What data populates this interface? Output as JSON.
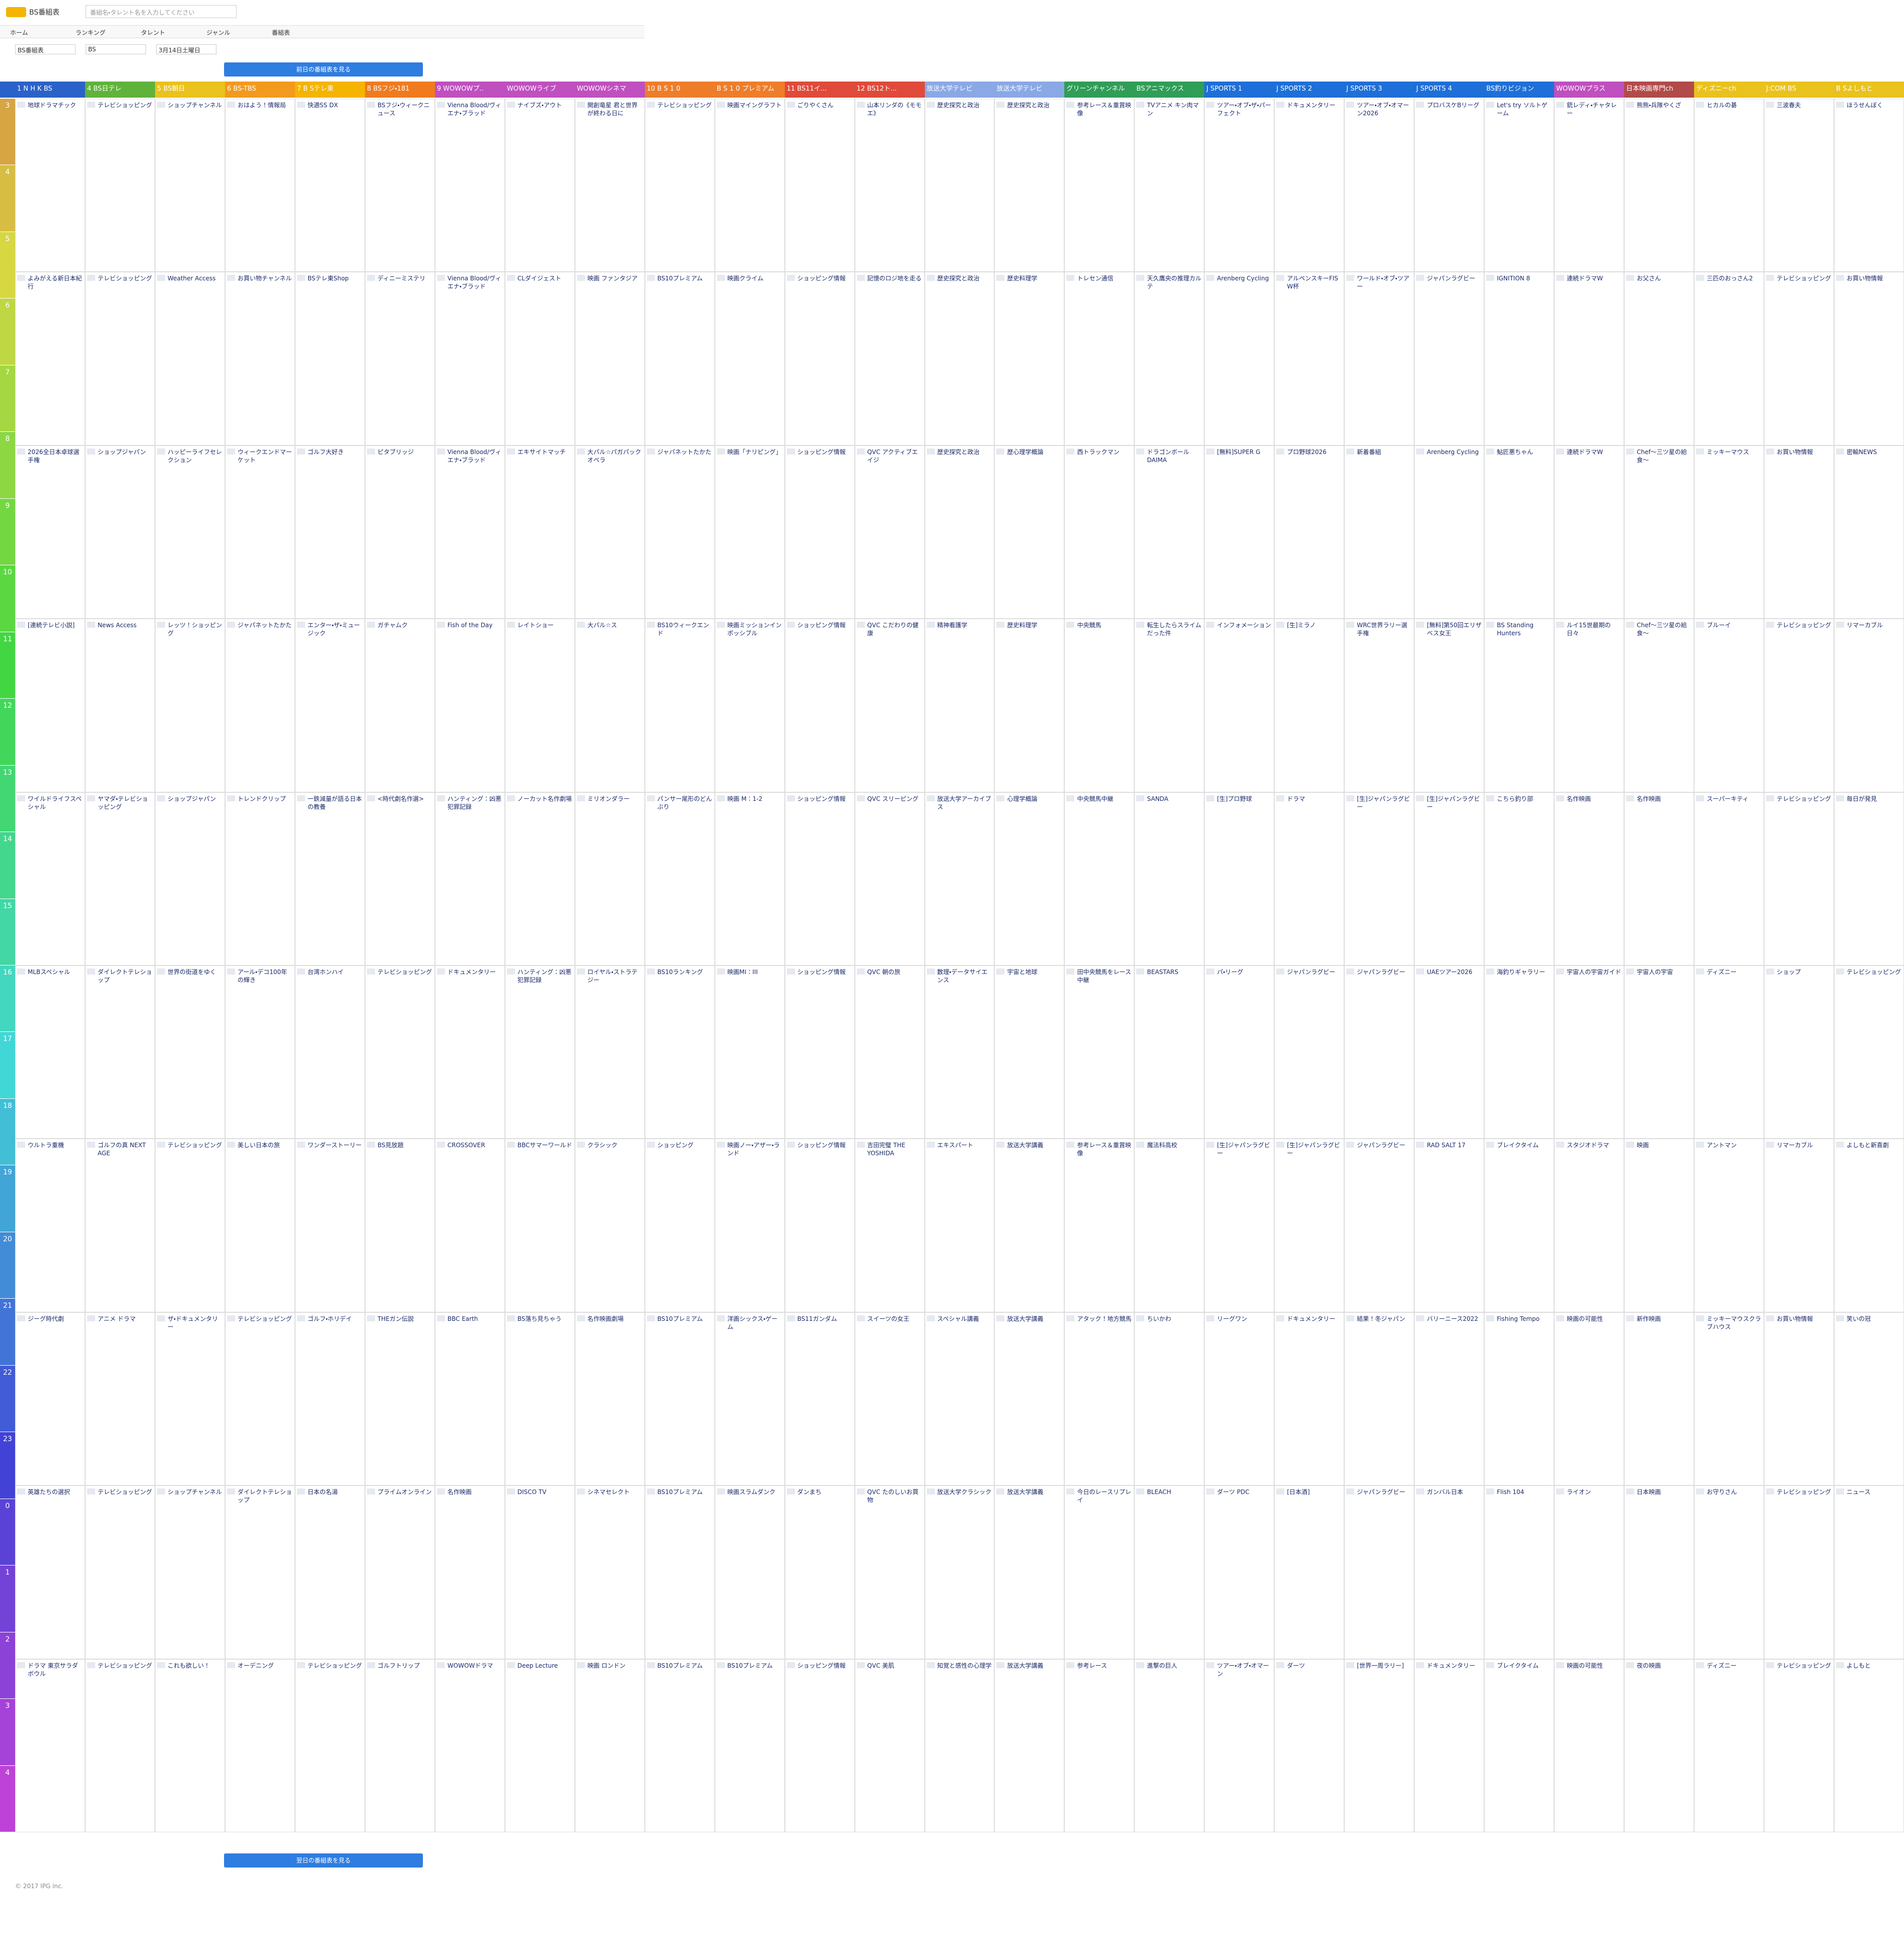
{
  "header": {
    "logo": "BS番組表",
    "search_placeholder": "番組名・タレント名を入力してください"
  },
  "nav": [
    "ホーム",
    "ランキング",
    "タレント",
    "ジャンル",
    "番組表"
  ],
  "selectors": [
    "BS番組表",
    "BS",
    "3月14日土曜日"
  ],
  "prev_button": "前日の番組表を見る",
  "next_button": "翌日の番組表を見る",
  "footer": "© 2017 IPG inc.",
  "hours": [
    3,
    4,
    5,
    6,
    7,
    8,
    9,
    10,
    11,
    12,
    13,
    14,
    15,
    16,
    17,
    18,
    19,
    20,
    21,
    22,
    23,
    0,
    1,
    2,
    3,
    4
  ],
  "channels": [
    {
      "name": "1 N H K BS",
      "color": "#2b62c9",
      "programs": [
        "地球ドラマチック",
        "よみがえる新日本紀行",
        "2026全日本卓球選手権",
        "[連続テレビ小説]",
        "ワイルドライフスペシャル",
        "MLBスペシャル",
        "ウルトラ重機",
        "ジーグ時代劇",
        "英雄たちの選択",
        "ドラマ 東京サラダボウル"
      ]
    },
    {
      "name": "4 BS日テレ",
      "color": "#5fb33a",
      "programs": [
        "テレビショッピング",
        "テレビショッピング",
        "ショップジャパン",
        "News Access",
        "ヤマダ・テレビショッピング",
        "ダイレクトテレショップ",
        "ゴルフの真 NEXT AGE",
        "アニメ ドラマ",
        "テレビショッピング",
        "テレビショッピング"
      ]
    },
    {
      "name": "5 BS朝日",
      "color": "#e9c21d",
      "programs": [
        "ショップチャンネル",
        "Weather Access",
        "ハッピーライフセレクション",
        "レッツ！ショッピング",
        "ショップジャパン",
        "世界の街道をゆく",
        "テレビショッピング",
        "ザ・ドキュメンタリー",
        "ショップチャンネル",
        "これも欲しい！"
      ]
    },
    {
      "name": "6 BS-TBS",
      "color": "#f29a1d",
      "programs": [
        "おはよう！情報局",
        "お買い物チャンネル",
        "ウィークエンドマーケット",
        "ジャパネットたかた",
        "トレンドクリップ",
        "アール・デコ100年の輝き",
        "美しい日本の旅",
        "テレビショッピング",
        "ダイレクトテレショップ",
        "オーデニング"
      ]
    },
    {
      "name": "7 B Sテレ東",
      "color": "#f4b400",
      "programs": [
        "快適SS DX",
        "BSテレ東Shop",
        "ゴルフ大好き",
        "エンター・ザ・ミュージック",
        "一鉄減量が語る日本の教養",
        "台湾ホンハイ",
        "ワンダーストーリー",
        "ゴルフ・ホリデイ",
        "日本の名湯",
        "テレビショッピング"
      ]
    },
    {
      "name": "8 BSフジ・181",
      "color": "#f07b1e",
      "programs": [
        "BSフジ・ウィークニュース",
        "ディニーミステリ",
        "ピタブリッジ",
        "ガチャムク",
        "<時代劇名作選>",
        "テレビショッピング",
        "BS見放題",
        "THEガン伝説",
        "プライムオンライン",
        "ゴルフトリップ"
      ]
    },
    {
      "name": "9 WOWOWプ..",
      "color": "#c04fc0",
      "programs": [
        "Vienna Blood/ヴィエナ・ブラッド",
        "Vienna Blood/ヴィエナ・ブラッド",
        "Vienna Blood/ヴィエナ・ブラッド",
        "Fish of the Day",
        "ハンティング：凶悪犯罪記録",
        "ドキュメンタリー",
        "CROSSOVER",
        "BBC Earth",
        "名作映画",
        "WOWOWドラマ"
      ]
    },
    {
      "name": "WOWOWライブ",
      "color": "#c04fc0",
      "programs": [
        "ナイブズ・アウト",
        "CLダイジェスト",
        "エキサイトマッチ",
        "レイトショー",
        "ノーカット名作劇場",
        "ハンティング：凶悪犯罪記録",
        "BBCサマーワールド",
        "BS落ち見ちゃう",
        "DISCO TV",
        "Deep Lecture"
      ]
    },
    {
      "name": "WOWOWシネマ",
      "color": "#c04fc0",
      "programs": [
        "開創竜星 君と世界が終わる日に",
        "映画 ファンタジア",
        "大パル☆パガパックオペラ",
        "大パル☆ス",
        "ミリオンダラー",
        "ロイヤル・ストラテジー",
        "クラシック",
        "名作映画劇場",
        "シネマセレクト",
        "映画 ロンドン"
      ]
    },
    {
      "name": "10 B S 1 0",
      "color": "#ee7d2a",
      "programs": [
        "テレビショッピング",
        "BS10プレミアム",
        "ジャパネットたかた",
        "BS10ウィークエンド",
        "パンサー尾形のどんぶり",
        "BS10ランキング",
        "ショッピング",
        "BS10プレミアム",
        "BS10プレミアム",
        "BS10プレミアム"
      ]
    },
    {
      "name": "B S 1 0 プレミアム",
      "color": "#ee7d2a",
      "programs": [
        "映画マイングラフト",
        "映画クライム",
        "映画「ナリピング」",
        "映画ミッションインポッシブル",
        "映画 M：1-2",
        "映画MI：III",
        "映画ノー・アザー・ランド",
        "洋画シックス・ゲーム",
        "映画スラムダンク",
        "BS10プレミアム"
      ]
    },
    {
      "name": "11 BS11イ...",
      "color": "#e04a3a",
      "programs": [
        "ごりやくさん",
        "ショッピング情報",
        "ショッピング情報",
        "ショッピング情報",
        "ショッピング情報",
        "ショッピング情報",
        "ショッピング情報",
        "BS11ガンダム",
        "ダンまち",
        "ショッピング情報"
      ]
    },
    {
      "name": "12 BS12ト...",
      "color": "#e04a3a",
      "programs": [
        "山本リンダの《モモエ》",
        "記憶のロジ地を走る",
        "QVC アクティブエイジ",
        "QVC こだわりの健康",
        "QVC スリーピング",
        "QVC 朝の旅",
        "吉田完璧 THE YOSHIDA",
        "スイーツの女王",
        "QVC たのしいお買物",
        "QVC 美肌"
      ]
    },
    {
      "name": "放送大学テレビ",
      "color": "#8aa8e6",
      "programs": [
        "歴史探究と政治",
        "歴史探究と政治",
        "歴史探究と政治",
        "精神看護学",
        "放送大学アーカイブス",
        "数理・データサイエンス",
        "エキスパート",
        "スペシャル講義",
        "放送大学クラシック",
        "知覚と感性の心理学"
      ]
    },
    {
      "name": "放送大学テレビ",
      "color": "#8aa8e6",
      "programs": [
        "歴史探究と政治",
        "歴史料理学",
        "歴心理学概論",
        "歴史料理学",
        "心理学概論",
        "宇宙と地球",
        "放送大学講義",
        "放送大学講義",
        "放送大学講義",
        "放送大学講義"
      ]
    },
    {
      "name": "グリーンチャンネル",
      "color": "#2f9e56",
      "programs": [
        "参考レース＆重賞映像",
        "トレセン通信",
        "西トラックマン",
        "中央競馬",
        "中央競馬中継",
        "田中央競馬をレース中継",
        "参考レース＆重賞映像",
        "アタック！地方競馬",
        "今日のレースリプレイ",
        "参考レース"
      ]
    },
    {
      "name": "BSアニマックス",
      "color": "#2f9e56",
      "programs": [
        "TVアニメ キン肉マン",
        "天久鷹央の推理カルテ",
        "ドラゴンボールDAIMA",
        "転生したらスライムだった件",
        "SANDA",
        "BEASTARS",
        "魔法科高校",
        "ちいかわ",
        "BLEACH",
        "進撃の巨人"
      ]
    },
    {
      "name": "J SPORTS 1",
      "color": "#1e6fd8",
      "programs": [
        "ツアー・オブ・ザ・パーフェクト",
        "Arenberg Cycling",
        "[無料]SUPER G",
        "インフォメーション",
        "[生]プロ野球",
        "パ・リーグ",
        "[生]ジャパンラグビー",
        "リーグワン",
        "ダーツ PDC",
        "ツアー・オブ・オマーン"
      ]
    },
    {
      "name": "J SPORTS 2",
      "color": "#1e6fd8",
      "programs": [
        "ドキュメンタリー",
        "アルペンスキーFIS W杯",
        "プロ野球2026",
        "[生]ミラノ",
        "ドラマ",
        "ジャパンラグビー",
        "[生]ジャパンラグビー",
        "ドキュメンタリー",
        "[日本酒]",
        "ダーツ"
      ]
    },
    {
      "name": "J SPORTS 3",
      "color": "#1e6fd8",
      "programs": [
        "ツアー・オブ・オマーン2026",
        "ワールド・オブ・ツアー",
        "新着番組",
        "WRC世界ラリー選手権",
        "[生]ジャパンラグビー",
        "ジャパンラグビー",
        "ジャパンラグビー",
        "結果！冬ジャパン",
        "ジャパンラグビー",
        "[世界一周ラリー]"
      ]
    },
    {
      "name": "J SPORTS 4",
      "color": "#1e6fd8",
      "programs": [
        "プロバスケBリーグ",
        "ジャパンラグビー",
        "Arenberg Cycling",
        "[無料]第50回エリザベス女王",
        "[生]ジャパンラグビー",
        "UAEツアー2026",
        "RAD SALT 17",
        "バリーニース2022",
        "ガンバル日本",
        "ドキュメンタリー"
      ]
    },
    {
      "name": "BS釣りビジョン",
      "color": "#1e6fd8",
      "programs": [
        "Let's try ソルトゲーム",
        "IGNITION 8",
        "鮎匠悪ちゃん",
        "BS Standing Hunters",
        "こちら釣り部",
        "海釣りギャラリー",
        "ブレイクタイム",
        "Fishing Tempo",
        "Flish 104",
        "ブレイクタイム"
      ]
    },
    {
      "name": "WOWOWプラス",
      "color": "#c04fc0",
      "programs": [
        "銃レディ・チャタレー",
        "連続ドラマW",
        "連続ドラマW",
        "ルイ15世最期の日々",
        "名作映画",
        "宇宙人の宇宙ガイド",
        "スタジオドラマ",
        "映画の可能性",
        "ライオン",
        "映画の可能性"
      ]
    },
    {
      "name": "日本映画専門ch",
      "color": "#b24a4a",
      "programs": [
        "熊熊・兵隊やくざ",
        "お父さん",
        "Chef～三ツ星の給食～",
        "Chef～三ツ星の給食～",
        "名作映画",
        "宇宙人の宇宙",
        "映画",
        "新作映画",
        "日本映画",
        "夜の映画"
      ]
    },
    {
      "name": "ディズニーch",
      "color": "#e9c21d",
      "programs": [
        "ヒカルの碁",
        "三匹のおっさん2",
        "ミッキーマウス",
        "ブルーイ",
        "スーパーキティ",
        "ディズニー",
        "アントマン",
        "ミッキーマウスクラブハウス",
        "お守りさん",
        "ディズニー"
      ]
    },
    {
      "name": "J:COM BS",
      "color": "#e9c21d",
      "programs": [
        "三波春夫",
        "テレビショッピング",
        "お買い物情報",
        "テレビショッピング",
        "テレビショッピング",
        "ショップ",
        "リマーカブル",
        "お買い物情報",
        "テレビショッピング",
        "テレビショッピング"
      ]
    },
    {
      "name": "B Sよしもと",
      "color": "#e9c21d",
      "programs": [
        "ほうせんぼく",
        "お買い物情報",
        "密輸NEWS",
        "リマーカブル",
        "毎日が発見",
        "テレビショッピング",
        "よしもと新喜劇",
        "笑いの冠",
        "ニュース",
        "よしもと"
      ]
    }
  ]
}
